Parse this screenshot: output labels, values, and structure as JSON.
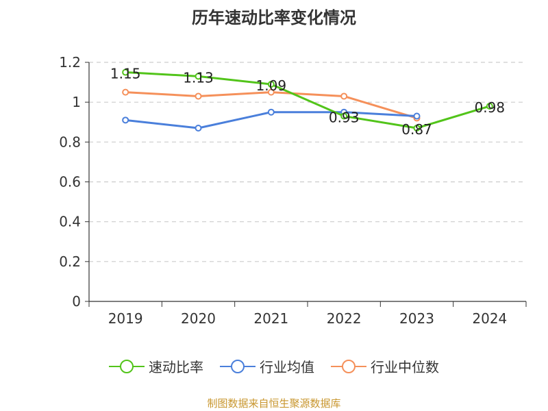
{
  "chart_data": {
    "type": "line",
    "title": "历年速动比率变化情况",
    "categories": [
      "2019",
      "2020",
      "2021",
      "2022",
      "2023",
      "2024"
    ],
    "ylim": [
      0,
      1.2
    ],
    "yticks": [
      "0",
      "0.2",
      "0.4",
      "0.6",
      "0.8",
      "1",
      "1.2"
    ],
    "grid": true,
    "legend_position": "bottom",
    "series": [
      {
        "name": "速动比率",
        "color": "#52c41a",
        "values": [
          1.15,
          1.13,
          1.09,
          0.93,
          0.87,
          0.98
        ],
        "labels": [
          "1.15",
          "1.13",
          "1.09",
          "0.93",
          "0.87",
          "0.98"
        ]
      },
      {
        "name": "行业均值",
        "color": "#4a7fdb",
        "values": [
          0.91,
          0.87,
          0.95,
          0.95,
          0.93,
          null
        ]
      },
      {
        "name": "行业中位数",
        "color": "#f5905a",
        "values": [
          1.05,
          1.03,
          1.05,
          1.03,
          0.92,
          null
        ]
      }
    ]
  },
  "source_note": "制图数据来自恒生聚源数据库"
}
